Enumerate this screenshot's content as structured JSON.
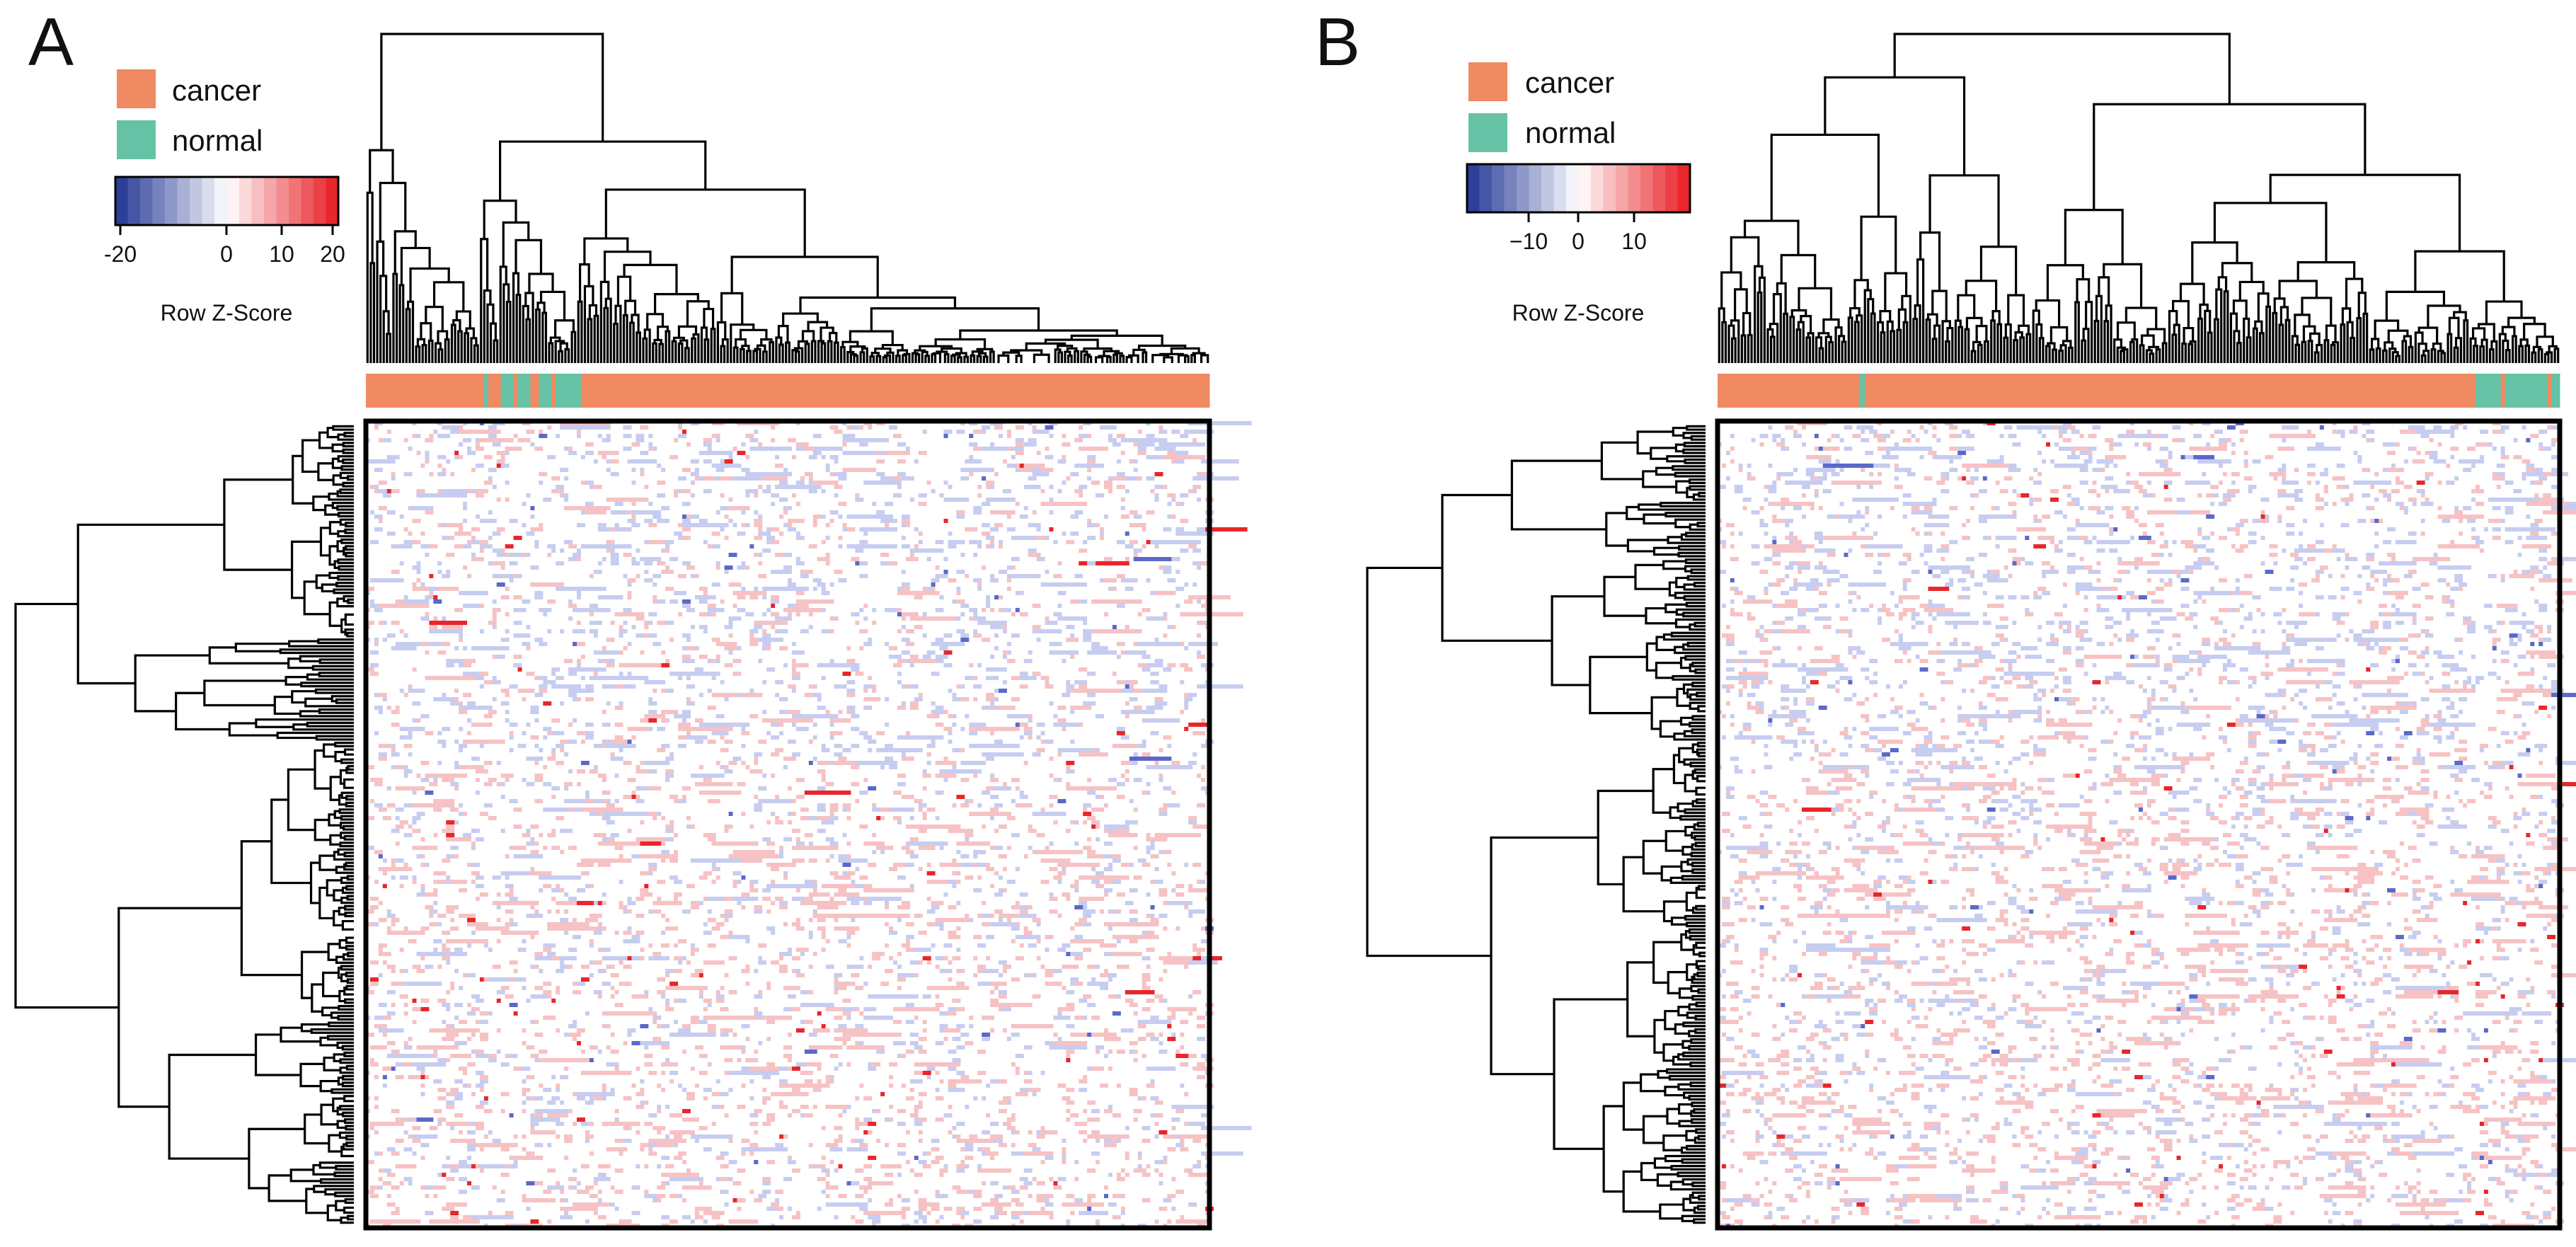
{
  "chart_data": [
    {
      "type": "heatmap",
      "panel": "A",
      "groups": [
        "cancer",
        "normal"
      ],
      "group_colors": {
        "cancer": "#EF8A62",
        "normal": "#66C2A5"
      },
      "color_scale": {
        "colors": [
          "#2c3f99",
          "#ffffff",
          "#e8262b"
        ],
        "ticks": [
          -20,
          0,
          10,
          20
        ],
        "tick_labels": [
          "-20",
          "0",
          "10",
          "20"
        ],
        "title": "Row Z-Score"
      },
      "sample_annotation": [
        [
          "cancer",
          0.0,
          0.14
        ],
        [
          "normal",
          0.14,
          0.145
        ],
        [
          "cancer",
          0.145,
          0.16
        ],
        [
          "normal",
          0.16,
          0.175
        ],
        [
          "cancer",
          0.175,
          0.18
        ],
        [
          "normal",
          0.18,
          0.195
        ],
        [
          "cancer",
          0.195,
          0.205
        ],
        [
          "normal",
          0.205,
          0.22
        ],
        [
          "cancer",
          0.22,
          0.225
        ],
        [
          "normal",
          0.225,
          0.255
        ],
        [
          "cancer",
          0.255,
          1.0
        ]
      ],
      "row_dendrogram": true,
      "column_dendrogram": true
    },
    {
      "type": "heatmap",
      "panel": "B",
      "groups": [
        "cancer",
        "normal"
      ],
      "group_colors": {
        "cancer": "#EF8A62",
        "normal": "#66C2A5"
      },
      "color_scale": {
        "colors": [
          "#2c3f99",
          "#ffffff",
          "#e8262b"
        ],
        "ticks": [
          -10,
          0,
          10
        ],
        "tick_labels": [
          "−10",
          "0",
          "10"
        ],
        "title": "Row Z-Score"
      },
      "sample_annotation": [
        [
          "cancer",
          0.0,
          0.168
        ],
        [
          "normal",
          0.168,
          0.175
        ],
        [
          "cancer",
          0.175,
          0.9
        ],
        [
          "normal",
          0.9,
          0.93
        ],
        [
          "cancer",
          0.93,
          0.935
        ],
        [
          "normal",
          0.935,
          0.985
        ],
        [
          "cancer",
          0.985,
          0.99
        ],
        [
          "normal",
          0.99,
          1.0
        ]
      ],
      "row_dendrogram": true,
      "column_dendrogram": true
    }
  ],
  "panels": [
    {
      "letter": "A",
      "legend": {
        "cancer": "cancer",
        "normal": "normal",
        "title": "Row Z-Score"
      }
    },
    {
      "letter": "B",
      "legend": {
        "cancer": "cancer",
        "normal": "normal",
        "title": "Row Z-Score"
      }
    }
  ]
}
